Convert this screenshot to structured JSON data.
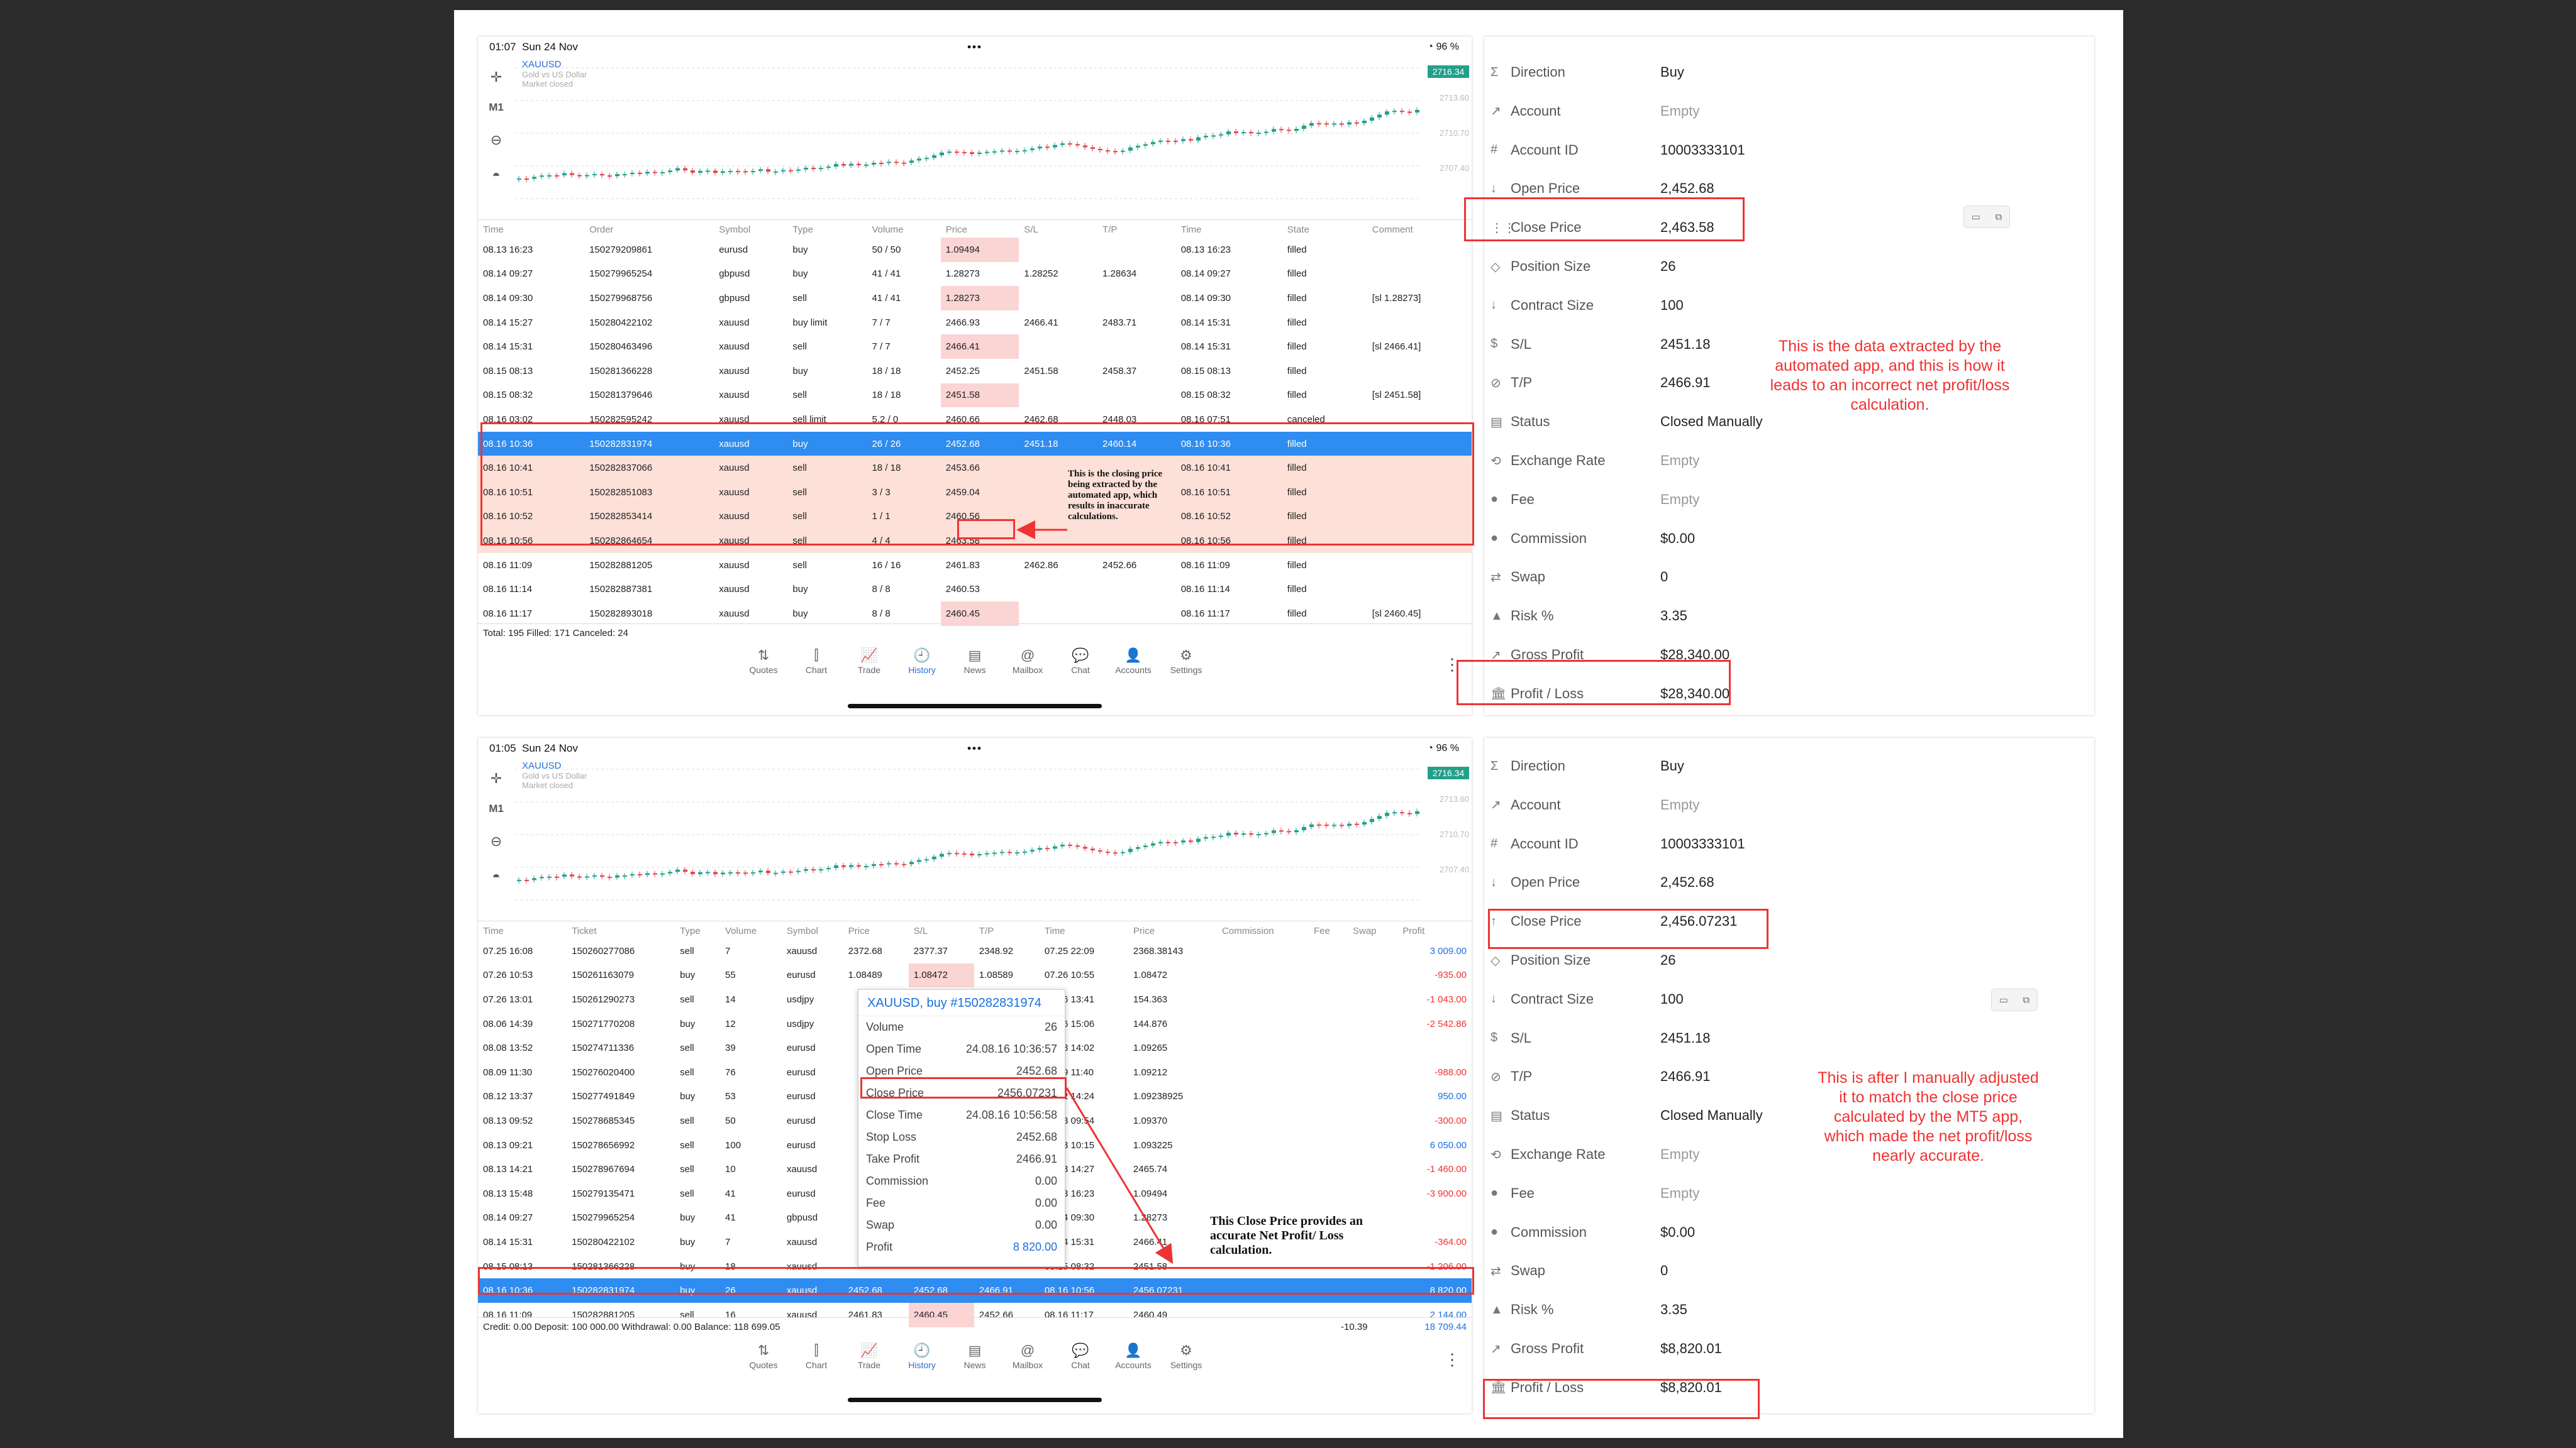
{
  "top": {
    "statusbar": {
      "time": "01:07",
      "date": "Sun 24 Nov",
      "battery": "96 %"
    },
    "chart": {
      "symbol": "XAUUSD",
      "sub1": "Gold vs US Dollar",
      "sub2": "Market closed",
      "timeframe": "M1",
      "last_price": "2716.34",
      "axis": [
        "2713.60",
        "2710.70",
        "2707.40"
      ]
    },
    "columns": [
      "Time",
      "Order",
      "Symbol",
      "Type",
      "Volume",
      "Price",
      "S/L",
      "T/P",
      "Time",
      "State",
      "Comment"
    ],
    "rows": [
      [
        "08.13 16:23",
        "150279209861",
        "eurusd",
        "buy",
        "50 / 50",
        "1.09494",
        "",
        "",
        "08.13 16:23",
        "filled",
        ""
      ],
      [
        "08.14 09:27",
        "150279965254",
        "gbpusd",
        "buy",
        "41 / 41",
        "1.28273",
        "1.28252",
        "1.28634",
        "08.14 09:27",
        "filled",
        ""
      ],
      [
        "08.14 09:30",
        "150279968756",
        "gbpusd",
        "sell",
        "41 / 41",
        "1.28273",
        "",
        "",
        "08.14 09:30",
        "filled",
        "[sl 1.28273]"
      ],
      [
        "08.14 15:27",
        "150280422102",
        "xauusd",
        "buy limit",
        "7 / 7",
        "2466.93",
        "2466.41",
        "2483.71",
        "08.14 15:31",
        "filled",
        ""
      ],
      [
        "08.14 15:31",
        "150280463496",
        "xauusd",
        "sell",
        "7 / 7",
        "2466.41",
        "",
        "",
        "08.14 15:31",
        "filled",
        "[sl 2466.41]"
      ],
      [
        "08.15 08:13",
        "150281366228",
        "xauusd",
        "buy",
        "18 / 18",
        "2452.25",
        "2451.58",
        "2458.37",
        "08.15 08:13",
        "filled",
        ""
      ],
      [
        "08.15 08:32",
        "150281379646",
        "xauusd",
        "sell",
        "18 / 18",
        "2451.58",
        "",
        "",
        "08.15 08:32",
        "filled",
        "[sl 2451.58]"
      ],
      [
        "08.16 03:02",
        "150282595242",
        "xauusd",
        "sell limit",
        "5.2 / 0",
        "2460.66",
        "2462.68",
        "2448.03",
        "08.16 07:51",
        "canceled",
        ""
      ],
      [
        "08.16 10:36",
        "150282831974",
        "xauusd",
        "buy",
        "26 / 26",
        "2452.68",
        "2451.18",
        "2460.14",
        "08.16 10:36",
        "filled",
        ""
      ],
      [
        "08.16 10:41",
        "150282837066",
        "xauusd",
        "sell",
        "18 / 18",
        "2453.66",
        "",
        "",
        "08.16 10:41",
        "filled",
        ""
      ],
      [
        "08.16 10:51",
        "150282851083",
        "xauusd",
        "sell",
        "3 / 3",
        "2459.04",
        "",
        "",
        "08.16 10:51",
        "filled",
        ""
      ],
      [
        "08.16 10:52",
        "150282853414",
        "xauusd",
        "sell",
        "1 / 1",
        "2460.56",
        "",
        "",
        "08.16 10:52",
        "filled",
        ""
      ],
      [
        "08.16 10:56",
        "150282864654",
        "xauusd",
        "sell",
        "4 / 4",
        "2463.58",
        "",
        "",
        "08.16 10:56",
        "filled",
        ""
      ],
      [
        "08.16 11:09",
        "150282881205",
        "xauusd",
        "sell",
        "16 / 16",
        "2461.83",
        "2462.86",
        "2452.66",
        "08.16 11:09",
        "filled",
        ""
      ],
      [
        "08.16 11:14",
        "150282887381",
        "xauusd",
        "buy",
        "8 / 8",
        "2460.53",
        "",
        "",
        "08.16 11:14",
        "filled",
        ""
      ],
      [
        "08.16 11:17",
        "150282893018",
        "xauusd",
        "buy",
        "8 / 8",
        "2460.45",
        "",
        "",
        "08.16 11:17",
        "filled",
        "[sl 2460.45]"
      ]
    ],
    "totals": "Total: 195 Filled: 171 Canceled: 24",
    "annotation": "This is the closing price being extracted by the automated app, which results in inaccurate calculations."
  },
  "nav": [
    "Quotes",
    "Chart",
    "Trade",
    "History",
    "News",
    "Mailbox",
    "Chat",
    "Accounts",
    "Settings"
  ],
  "nav_icons": [
    "⇅",
    "⫿",
    "📈",
    "🕘",
    "▤",
    "@",
    "💬",
    "👤",
    "⚙"
  ],
  "bottom": {
    "statusbar": {
      "time": "01:05",
      "date": "Sun 24 Nov",
      "battery": "96 %"
    },
    "columns": [
      "Time",
      "Ticket",
      "Type",
      "Volume",
      "Symbol",
      "Price",
      "S/L",
      "T/P",
      "Time",
      "Price",
      "Commission",
      "Fee",
      "Swap",
      "Profit"
    ],
    "rows": [
      [
        "07.25 16:08",
        "150260277086",
        "sell",
        "7",
        "xauusd",
        "2372.68",
        "2377.37",
        "2348.92",
        "07.25 22:09",
        "2368.38143",
        "",
        "",
        "",
        "3 009.00"
      ],
      [
        "07.26 10:53",
        "150261163079",
        "buy",
        "55",
        "eurusd",
        "1.08489",
        "1.08472",
        "1.08589",
        "07.26 10:55",
        "1.08472",
        "",
        "",
        "",
        "-935.00"
      ],
      [
        "07.26 13:01",
        "150261290273",
        "sell",
        "14",
        "usdjpy",
        "",
        "",
        "",
        "07.26 13:41",
        "154.363",
        "",
        "",
        "",
        "-1 043.00"
      ],
      [
        "08.06 14:39",
        "150271770208",
        "buy",
        "12",
        "usdjpy",
        "",
        "",
        "",
        "08.06 15:06",
        "144.876",
        "",
        "",
        "",
        "-2 542.86"
      ],
      [
        "08.08 13:52",
        "150274711336",
        "sell",
        "39",
        "eurusd",
        "",
        "",
        "",
        "08.08 14:02",
        "1.09265",
        "",
        "",
        "",
        ""
      ],
      [
        "08.09 11:30",
        "150276020400",
        "sell",
        "76",
        "eurusd",
        "",
        "",
        "",
        "08.09 11:40",
        "1.09212",
        "",
        "",
        "",
        "-988.00"
      ],
      [
        "08.12 13:37",
        "150277491849",
        "buy",
        "53",
        "eurusd",
        "",
        "",
        "",
        "08.12 14:24",
        "1.09238925",
        "",
        "",
        "",
        "950.00"
      ],
      [
        "08.13 09:52",
        "150278685345",
        "sell",
        "50",
        "eurusd",
        "",
        "",
        "",
        "08.13 09:54",
        "1.09370",
        "",
        "",
        "",
        "-300.00"
      ],
      [
        "08.13 09:21",
        "150278656992",
        "sell",
        "100",
        "eurusd",
        "",
        "",
        "",
        "08.13 10:15",
        "1.093225",
        "",
        "",
        "",
        "6 050.00"
      ],
      [
        "08.13 14:21",
        "150278967694",
        "sell",
        "10",
        "xauusd",
        "",
        "",
        "",
        "08.13 14:27",
        "2465.74",
        "",
        "",
        "",
        "-1 460.00"
      ],
      [
        "08.13 15:48",
        "150279135471",
        "sell",
        "41",
        "eurusd",
        "",
        "",
        "",
        "08.13 16:23",
        "1.09494",
        "",
        "",
        "",
        "-3 900.00"
      ],
      [
        "08.14 09:27",
        "150279965254",
        "buy",
        "41",
        "gbpusd",
        "",
        "",
        "",
        "08.14 09:30",
        "1.28273",
        "",
        "",
        "",
        ""
      ],
      [
        "08.14 15:31",
        "150280422102",
        "buy",
        "7",
        "xauusd",
        "",
        "",
        "",
        "08.14 15:31",
        "2466.41",
        "",
        "",
        "",
        "-364.00"
      ],
      [
        "08.15 08:13",
        "150281366228",
        "buy",
        "18",
        "xauusd",
        "",
        "",
        "",
        "08.15 08:32",
        "2451.58",
        "",
        "",
        "",
        "-1 206.00"
      ],
      [
        "08.16 10:36",
        "150282831974",
        "buy",
        "26",
        "xauusd",
        "2452.68",
        "2452.68",
        "2466.91",
        "08.16 10:56",
        "2456.07231",
        "",
        "",
        "",
        "8 820.00"
      ],
      [
        "08.16 11:09",
        "150282881205",
        "sell",
        "16",
        "xauusd",
        "2461.83",
        "2460.45",
        "2452.66",
        "08.16 11:17",
        "2460.49",
        "",
        "",
        "",
        "2 144.00"
      ]
    ],
    "footer": "Credit: 0.00 Deposit: 100 000.00 Withdrawal: 0.00 Balance: 118 699.05",
    "footer_swap": "-10.39",
    "footer_profit": "18 709.44",
    "popup": {
      "title": "XAUUSD, buy #150282831974",
      "rows": [
        [
          "Volume",
          "26"
        ],
        [
          "Open Time",
          "24.08.16 10:36:57"
        ],
        [
          "Open Price",
          "2452.68"
        ],
        [
          "Close Price",
          "2456.07231"
        ],
        [
          "Close Time",
          "24.08.16 10:56:58"
        ],
        [
          "Stop Loss",
          "2452.68"
        ],
        [
          "Take Profit",
          "2466.91"
        ],
        [
          "Commission",
          "0.00"
        ],
        [
          "Fee",
          "0.00"
        ],
        [
          "Swap",
          "0.00"
        ],
        [
          "Profit",
          "8 820.00"
        ]
      ]
    },
    "annotation": "This Close Price provides an accurate Net Profit/ Loss calculation."
  },
  "details_top": {
    "labels": [
      "Direction",
      "Account",
      "Account ID",
      "Open Price",
      "Close Price",
      "Position Size",
      "Contract Size",
      "S/L",
      "T/P",
      "Status",
      "Exchange Rate",
      "Fee",
      "Commission",
      "Swap",
      "Risk %",
      "Gross Profit",
      "Profit / Loss"
    ],
    "icons": [
      "Σ",
      "↗",
      "#",
      "↓",
      "⋮⋮",
      "◇",
      "↓",
      "$",
      "⊘",
      "▤",
      "⟲",
      "●",
      "●",
      "⇄",
      "▲",
      "↗",
      "🏛"
    ],
    "values": [
      "Buy",
      "Empty",
      "10003333101",
      "2,452.68",
      "2,463.58",
      "26",
      "100",
      "2451.18",
      "2466.91",
      "Closed Manually",
      "Empty",
      "Empty",
      "$0.00",
      "0",
      "3.35",
      "$28,340.00",
      "$28,340.00"
    ],
    "note": "This is the data extracted by the automated app, and this is how it leads to an incorrect net profit/loss calculation."
  },
  "details_bottom": {
    "labels": [
      "Direction",
      "Account",
      "Account ID",
      "Open Price",
      "Close Price",
      "Position Size",
      "Contract Size",
      "S/L",
      "T/P",
      "Status",
      "Exchange Rate",
      "Fee",
      "Commission",
      "Swap",
      "Risk %",
      "Gross Profit",
      "Profit / Loss"
    ],
    "icons": [
      "Σ",
      "↗",
      "#",
      "↓",
      "↑",
      "◇",
      "↓",
      "$",
      "⊘",
      "▤",
      "⟲",
      "●",
      "●",
      "⇄",
      "▲",
      "↗",
      "🏛"
    ],
    "values": [
      "Buy",
      "Empty",
      "10003333101",
      "2,452.68",
      "2,456.07231",
      "26",
      "100",
      "2451.18",
      "2466.91",
      "Closed Manually",
      "Empty",
      "Empty",
      "$0.00",
      "0",
      "3.35",
      "$8,820.01",
      "$8,820.01"
    ],
    "note": "This is after I manually adjusted it to match the close price calculated by the MT5 app, which made the net profit/loss nearly accurate."
  },
  "colors": {
    "accent": "#2f8cf0",
    "highlight_red": "#e33",
    "bull": "#23a08a",
    "bear": "#e0454e"
  }
}
